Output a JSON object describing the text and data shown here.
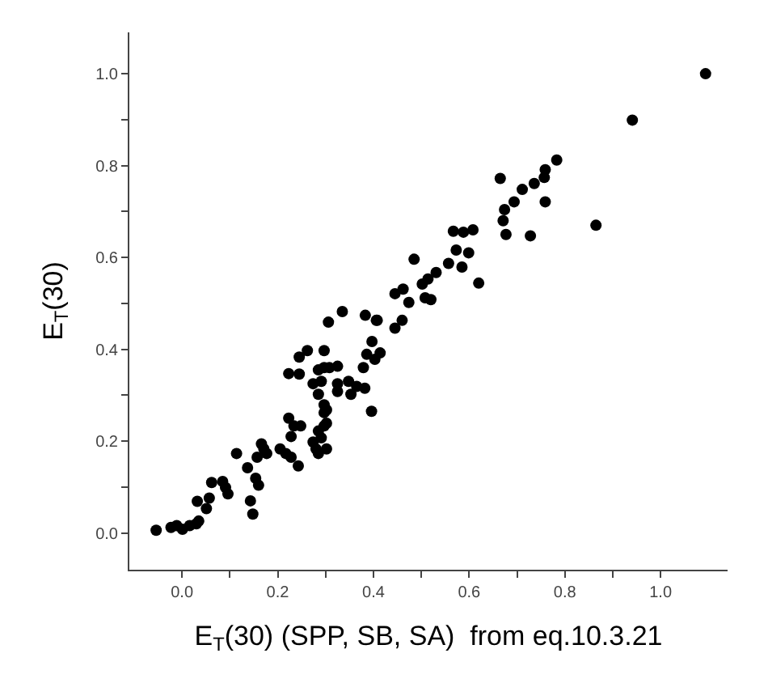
{
  "chart_data": {
    "type": "scatter",
    "xlabel": "E$_{T}$(30) (SPP, SB, SA)  from eq.10.3.21",
    "ylabel": "E$_{T}$(30)",
    "marker": "circle",
    "xlim": [
      -0.11,
      1.14
    ],
    "ylim": [
      -0.08,
      1.09
    ],
    "xticks": [
      {
        "value": 0.0,
        "label": "0.0"
      },
      {
        "value": 0.1,
        "label": null
      },
      {
        "value": 0.2,
        "label": "0.2"
      },
      {
        "value": 0.3,
        "label": null
      },
      {
        "value": 0.4,
        "label": "0.4"
      },
      {
        "value": 0.5,
        "label": null
      },
      {
        "value": 0.6,
        "label": "0.6"
      },
      {
        "value": 0.7,
        "label": null
      },
      {
        "value": 0.8,
        "label": "0.8"
      },
      {
        "value": 0.9,
        "label": null
      },
      {
        "value": 1.0,
        "label": "1.0"
      }
    ],
    "yticks": [
      {
        "value": 0.0,
        "label": "0.0"
      },
      {
        "value": 0.1,
        "label": null
      },
      {
        "value": 0.2,
        "label": "0.2"
      },
      {
        "value": 0.3,
        "label": null
      },
      {
        "value": 0.4,
        "label": "0.4"
      },
      {
        "value": 0.5,
        "label": null
      },
      {
        "value": 0.6,
        "label": "0.6"
      },
      {
        "value": 0.7,
        "label": null
      },
      {
        "value": 0.8,
        "label": "0.8"
      },
      {
        "value": 0.9,
        "label": null
      },
      {
        "value": 1.0,
        "label": "1.0"
      }
    ],
    "series": [
      {
        "color": "#000000",
        "x": [
          -0.054,
          -0.023,
          -0.011,
          0.001,
          0.016,
          0.03,
          0.035,
          0.032,
          0.057,
          0.051,
          0.062,
          0.085,
          0.091,
          0.096,
          0.114,
          0.137,
          0.143,
          0.148,
          0.154,
          0.16,
          0.157,
          0.166,
          0.171,
          0.177,
          0.205,
          0.217,
          0.228,
          0.243,
          0.223,
          0.245,
          0.223,
          0.234,
          0.248,
          0.228,
          0.245,
          0.262,
          0.274,
          0.28,
          0.285,
          0.302,
          0.291,
          0.297,
          0.302,
          0.285,
          0.274,
          0.285,
          0.297,
          0.297,
          0.302,
          0.291,
          0.285,
          0.297,
          0.297,
          0.308,
          0.325,
          0.306,
          0.335,
          0.325,
          0.325,
          0.348,
          0.353,
          0.365,
          0.382,
          0.383,
          0.406,
          0.379,
          0.386,
          0.397,
          0.403,
          0.414,
          0.396,
          0.408,
          0.445,
          0.445,
          0.46,
          0.462,
          0.474,
          0.485,
          0.502,
          0.508,
          0.514,
          0.52,
          0.531,
          0.557,
          0.567,
          0.573,
          0.585,
          0.588,
          0.599,
          0.608,
          0.62,
          0.665,
          0.671,
          0.674,
          0.677,
          0.694,
          0.711,
          0.728,
          0.736,
          0.757,
          0.759,
          0.759,
          0.783,
          0.865,
          0.941,
          1.094
        ],
        "values": [
          0.006,
          0.012,
          0.016,
          0.008,
          0.016,
          0.02,
          0.026,
          0.069,
          0.076,
          0.053,
          0.11,
          0.112,
          0.099,
          0.085,
          0.173,
          0.142,
          0.07,
          0.041,
          0.119,
          0.104,
          0.165,
          0.194,
          0.183,
          0.173,
          0.183,
          0.173,
          0.165,
          0.146,
          0.347,
          0.346,
          0.25,
          0.233,
          0.233,
          0.21,
          0.383,
          0.397,
          0.198,
          0.183,
          0.173,
          0.183,
          0.207,
          0.233,
          0.239,
          0.222,
          0.325,
          0.302,
          0.279,
          0.262,
          0.268,
          0.33,
          0.355,
          0.36,
          0.397,
          0.36,
          0.363,
          0.459,
          0.482,
          0.325,
          0.308,
          0.33,
          0.302,
          0.319,
          0.315,
          0.474,
          0.463,
          0.36,
          0.389,
          0.417,
          0.378,
          0.392,
          0.265,
          0.463,
          0.446,
          0.521,
          0.463,
          0.531,
          0.502,
          0.596,
          0.542,
          0.512,
          0.553,
          0.508,
          0.567,
          0.587,
          0.657,
          0.616,
          0.579,
          0.655,
          0.61,
          0.66,
          0.544,
          0.772,
          0.68,
          0.704,
          0.65,
          0.721,
          0.748,
          0.647,
          0.761,
          0.774,
          0.791,
          0.721,
          0.812,
          0.67,
          0.899,
          1.0
        ]
      }
    ]
  }
}
